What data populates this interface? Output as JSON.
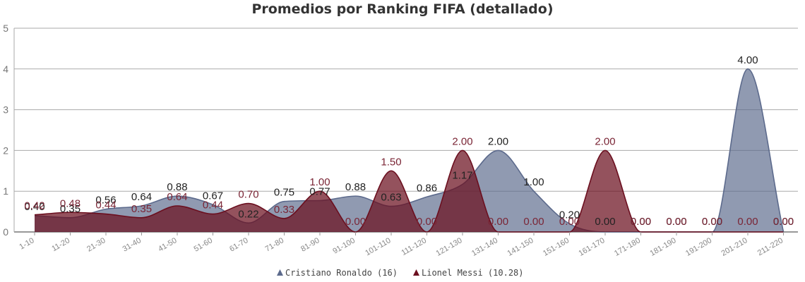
{
  "chart_data": {
    "type": "area",
    "title": "Promedios por Ranking FIFA (detallado)",
    "xlabel": "",
    "ylabel": "",
    "ylim": [
      0,
      5
    ],
    "yticks": [
      "0",
      "1",
      "2",
      "3",
      "4",
      "5"
    ],
    "grid": true,
    "legend_position": "bottom",
    "categories": [
      "1-10",
      "11-20",
      "21-30",
      "31-40",
      "41-50",
      "51-60",
      "61-70",
      "71-80",
      "81-90",
      "91-100",
      "101-110",
      "111-120",
      "121-130",
      "131-140",
      "141-150",
      "151-160",
      "161-170",
      "171-180",
      "181-190",
      "191-200",
      "201-210",
      "211-220"
    ],
    "series": [
      {
        "name": "Cristiano Ronaldo (16)",
        "color": "#5c6a8c",
        "values": [
          0.4,
          0.35,
          0.56,
          0.64,
          0.88,
          0.67,
          0.22,
          0.75,
          0.77,
          0.88,
          0.63,
          0.86,
          1.17,
          2.0,
          1.0,
          0.2,
          0.0,
          0.0,
          0.0,
          0.0,
          4.0,
          0.0
        ],
        "labels": [
          "0.40",
          "0.35",
          "0.56",
          "0.64",
          "0.88",
          "0.67",
          "0.22",
          "0.75",
          "0.77",
          "0.88",
          "0.63",
          "0.86",
          "1.17",
          "2.00",
          "1.00",
          "0.20",
          "0.00",
          "0.00",
          "0.00",
          "0.00",
          "4.00",
          "0.00"
        ]
      },
      {
        "name": "Lionel Messi (10.28)",
        "color": "#6b0f1f",
        "values": [
          0.42,
          0.48,
          0.44,
          0.35,
          0.64,
          0.44,
          0.7,
          0.33,
          1.0,
          0.0,
          1.5,
          0.0,
          2.0,
          0.0,
          0.0,
          0.0,
          2.0,
          0.0,
          0.0,
          0.0,
          0.0,
          0.0
        ],
        "labels": [
          "0.42",
          "0.48",
          "0.44",
          "0.35",
          "0.64",
          "0.44",
          "0.70",
          "0.33",
          "1.00",
          "0.00",
          "1.50",
          "0.00",
          "2.00",
          "0.00",
          "0.00",
          "0.00",
          "2.00",
          "0.00",
          "0.00",
          "0.00",
          "0.00",
          "0.00"
        ]
      }
    ]
  }
}
